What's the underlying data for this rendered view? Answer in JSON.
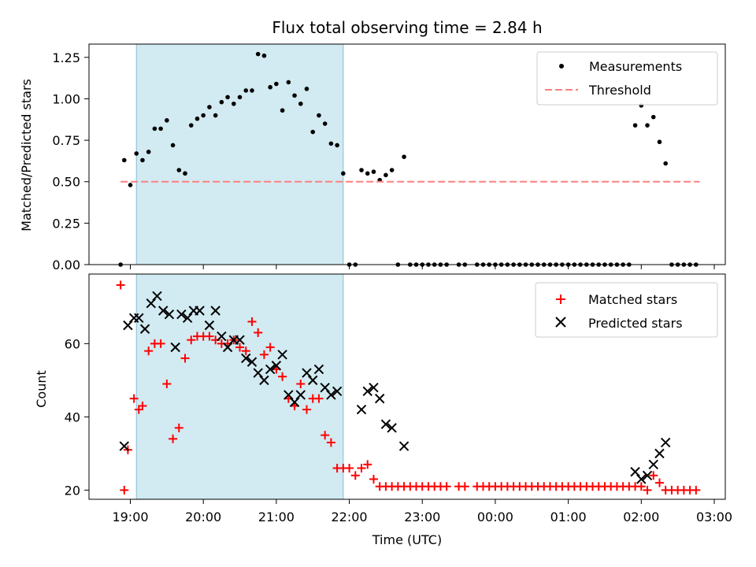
{
  "chart_data": [
    {
      "type": "scatter",
      "title": "Flux total observing time = 2.84 h",
      "xlabel": "",
      "ylabel": "Matched/Predicted stars",
      "ylim": [
        0,
        1.33
      ],
      "yticks": [
        "0.00",
        "0.25",
        "0.50",
        "0.75",
        "1.00",
        "1.25"
      ],
      "shaded_interval": [
        "19:05",
        "21:55"
      ],
      "legend": {
        "placement": "top-right",
        "entries": [
          "Measurements",
          "Threshold"
        ]
      },
      "threshold": {
        "name": "Threshold",
        "value": 0.5,
        "x_range": [
          "18:52",
          "02:48"
        ],
        "color": "#ff7f7f"
      },
      "series": [
        {
          "name": "Measurements",
          "color": "#000000",
          "points": [
            [
              "18:52",
              0.0
            ],
            [
              "18:55",
              0.63
            ],
            [
              "19:00",
              0.48
            ],
            [
              "19:05",
              0.67
            ],
            [
              "19:10",
              0.63
            ],
            [
              "19:15",
              0.68
            ],
            [
              "19:20",
              0.82
            ],
            [
              "19:25",
              0.82
            ],
            [
              "19:30",
              0.87
            ],
            [
              "19:35",
              0.72
            ],
            [
              "19:40",
              0.57
            ],
            [
              "19:45",
              0.55
            ],
            [
              "19:50",
              0.84
            ],
            [
              "19:55",
              0.88
            ],
            [
              "20:00",
              0.9
            ],
            [
              "20:05",
              0.95
            ],
            [
              "20:10",
              0.9
            ],
            [
              "20:15",
              0.98
            ],
            [
              "20:20",
              1.01
            ],
            [
              "20:25",
              0.97
            ],
            [
              "20:30",
              1.01
            ],
            [
              "20:35",
              1.05
            ],
            [
              "20:40",
              1.05
            ],
            [
              "20:45",
              1.27
            ],
            [
              "20:50",
              1.26
            ],
            [
              "20:55",
              1.07
            ],
            [
              "21:00",
              1.09
            ],
            [
              "21:05",
              0.93
            ],
            [
              "21:10",
              1.1
            ],
            [
              "21:15",
              1.02
            ],
            [
              "21:20",
              0.97
            ],
            [
              "21:25",
              1.06
            ],
            [
              "21:30",
              0.8
            ],
            [
              "21:35",
              0.9
            ],
            [
              "21:40",
              0.85
            ],
            [
              "21:45",
              0.73
            ],
            [
              "21:50",
              0.72
            ],
            [
              "21:55",
              0.55
            ],
            [
              "22:00",
              0.0
            ],
            [
              "22:05",
              0.0
            ],
            [
              "22:10",
              0.57
            ],
            [
              "22:15",
              0.55
            ],
            [
              "22:20",
              0.56
            ],
            [
              "22:25",
              0.51
            ],
            [
              "22:30",
              0.54
            ],
            [
              "22:35",
              0.57
            ],
            [
              "22:40",
              0.0
            ],
            [
              "22:45",
              0.65
            ],
            [
              "22:50",
              0.0
            ],
            [
              "22:55",
              0.0
            ],
            [
              "23:00",
              0.0
            ],
            [
              "23:05",
              0.0
            ],
            [
              "23:10",
              0.0
            ],
            [
              "23:15",
              0.0
            ],
            [
              "23:20",
              0.0
            ],
            [
              "23:30",
              0.0
            ],
            [
              "23:35",
              0.0
            ],
            [
              "23:45",
              0.0
            ],
            [
              "23:50",
              0.0
            ],
            [
              "23:55",
              0.0
            ],
            [
              "00:00",
              0.0
            ],
            [
              "00:05",
              0.0
            ],
            [
              "00:10",
              0.0
            ],
            [
              "00:15",
              0.0
            ],
            [
              "00:20",
              0.0
            ],
            [
              "00:25",
              0.0
            ],
            [
              "00:30",
              0.0
            ],
            [
              "00:35",
              0.0
            ],
            [
              "00:40",
              0.0
            ],
            [
              "00:45",
              0.0
            ],
            [
              "00:50",
              0.0
            ],
            [
              "00:55",
              0.0
            ],
            [
              "01:00",
              0.0
            ],
            [
              "01:05",
              0.0
            ],
            [
              "01:10",
              0.0
            ],
            [
              "01:15",
              0.0
            ],
            [
              "01:20",
              0.0
            ],
            [
              "01:25",
              0.0
            ],
            [
              "01:30",
              0.0
            ],
            [
              "01:35",
              0.0
            ],
            [
              "01:40",
              0.0
            ],
            [
              "01:45",
              0.0
            ],
            [
              "01:50",
              0.0
            ],
            [
              "01:55",
              0.84
            ],
            [
              "02:00",
              0.96
            ],
            [
              "02:05",
              0.84
            ],
            [
              "02:10",
              0.89
            ],
            [
              "02:15",
              0.74
            ],
            [
              "02:20",
              0.61
            ],
            [
              "02:25",
              0.0
            ],
            [
              "02:30",
              0.0
            ],
            [
              "02:35",
              0.0
            ],
            [
              "02:40",
              0.0
            ],
            [
              "02:45",
              0.0
            ]
          ]
        }
      ]
    },
    {
      "type": "scatter",
      "title": "",
      "xlabel": "Time (UTC)",
      "ylabel": "Count",
      "ylim": [
        17.5,
        79
      ],
      "yticks": [
        "20",
        "40",
        "60"
      ],
      "xticks": [
        "19:00",
        "20:00",
        "21:00",
        "22:00",
        "23:00",
        "00:00",
        "01:00",
        "02:00",
        "03:00"
      ],
      "shaded_interval": [
        "19:05",
        "21:55"
      ],
      "legend": {
        "placement": "top-right",
        "entries": [
          "Matched stars",
          "Predicted stars"
        ]
      },
      "series": [
        {
          "name": "Matched stars",
          "marker": "+",
          "color": "#ff0000",
          "points": [
            [
              "18:52",
              76
            ],
            [
              "18:55",
              20
            ],
            [
              "18:58",
              31
            ],
            [
              "19:03",
              45
            ],
            [
              "19:07",
              42
            ],
            [
              "19:10",
              43
            ],
            [
              "19:15",
              58
            ],
            [
              "19:20",
              60
            ],
            [
              "19:25",
              60
            ],
            [
              "19:30",
              49
            ],
            [
              "19:35",
              34
            ],
            [
              "19:40",
              37
            ],
            [
              "19:45",
              56
            ],
            [
              "19:50",
              61
            ],
            [
              "19:55",
              62
            ],
            [
              "20:00",
              62
            ],
            [
              "20:05",
              62
            ],
            [
              "20:10",
              61
            ],
            [
              "20:15",
              60
            ],
            [
              "20:20",
              60
            ],
            [
              "20:25",
              61
            ],
            [
              "20:30",
              59
            ],
            [
              "20:35",
              58
            ],
            [
              "20:40",
              66
            ],
            [
              "20:45",
              63
            ],
            [
              "20:50",
              57
            ],
            [
              "20:55",
              59
            ],
            [
              "21:00",
              53
            ],
            [
              "21:05",
              51
            ],
            [
              "21:10",
              45
            ],
            [
              "21:15",
              43
            ],
            [
              "21:20",
              49
            ],
            [
              "21:25",
              42
            ],
            [
              "21:30",
              45
            ],
            [
              "21:35",
              45
            ],
            [
              "21:40",
              35
            ],
            [
              "21:45",
              33
            ],
            [
              "21:50",
              26
            ],
            [
              "21:55",
              26
            ],
            [
              "22:00",
              26
            ],
            [
              "22:05",
              24
            ],
            [
              "22:10",
              26
            ],
            [
              "22:15",
              27
            ],
            [
              "22:20",
              23
            ],
            [
              "22:25",
              21
            ],
            [
              "22:30",
              21
            ],
            [
              "22:35",
              21
            ],
            [
              "22:40",
              21
            ],
            [
              "22:45",
              21
            ],
            [
              "22:50",
              21
            ],
            [
              "22:55",
              21
            ],
            [
              "23:00",
              21
            ],
            [
              "23:05",
              21
            ],
            [
              "23:10",
              21
            ],
            [
              "23:15",
              21
            ],
            [
              "23:20",
              21
            ],
            [
              "23:30",
              21
            ],
            [
              "23:35",
              21
            ],
            [
              "23:45",
              21
            ],
            [
              "23:50",
              21
            ],
            [
              "23:55",
              21
            ],
            [
              "00:00",
              21
            ],
            [
              "00:05",
              21
            ],
            [
              "00:10",
              21
            ],
            [
              "00:15",
              21
            ],
            [
              "00:20",
              21
            ],
            [
              "00:25",
              21
            ],
            [
              "00:30",
              21
            ],
            [
              "00:35",
              21
            ],
            [
              "00:40",
              21
            ],
            [
              "00:45",
              21
            ],
            [
              "00:50",
              21
            ],
            [
              "00:55",
              21
            ],
            [
              "01:00",
              21
            ],
            [
              "01:05",
              21
            ],
            [
              "01:10",
              21
            ],
            [
              "01:15",
              21
            ],
            [
              "01:20",
              21
            ],
            [
              "01:25",
              21
            ],
            [
              "01:30",
              21
            ],
            [
              "01:35",
              21
            ],
            [
              "01:40",
              21
            ],
            [
              "01:45",
              21
            ],
            [
              "01:50",
              21
            ],
            [
              "01:55",
              21
            ],
            [
              "02:00",
              21
            ],
            [
              "02:05",
              20
            ],
            [
              "02:10",
              24
            ],
            [
              "02:15",
              22
            ],
            [
              "02:20",
              20
            ],
            [
              "02:25",
              20
            ],
            [
              "02:30",
              20
            ],
            [
              "02:35",
              20
            ],
            [
              "02:40",
              20
            ],
            [
              "02:45",
              20
            ]
          ]
        },
        {
          "name": "Predicted stars",
          "marker": "x",
          "color": "#000000",
          "points": [
            [
              "18:55",
              32
            ],
            [
              "18:58",
              65
            ],
            [
              "19:03",
              67
            ],
            [
              "19:07",
              67
            ],
            [
              "19:12",
              64
            ],
            [
              "19:17",
              71
            ],
            [
              "19:22",
              73
            ],
            [
              "19:27",
              69
            ],
            [
              "19:32",
              68
            ],
            [
              "19:37",
              59
            ],
            [
              "19:42",
              68
            ],
            [
              "19:47",
              67
            ],
            [
              "19:52",
              69
            ],
            [
              "19:57",
              69
            ],
            [
              "20:05",
              65
            ],
            [
              "20:10",
              69
            ],
            [
              "20:15",
              62
            ],
            [
              "20:20",
              59
            ],
            [
              "20:25",
              61
            ],
            [
              "20:30",
              61
            ],
            [
              "20:35",
              56
            ],
            [
              "20:40",
              55
            ],
            [
              "20:45",
              52
            ],
            [
              "20:50",
              50
            ],
            [
              "20:55",
              53
            ],
            [
              "21:00",
              54
            ],
            [
              "21:05",
              57
            ],
            [
              "21:10",
              46
            ],
            [
              "21:15",
              44
            ],
            [
              "21:20",
              46
            ],
            [
              "21:25",
              52
            ],
            [
              "21:30",
              50
            ],
            [
              "21:35",
              53
            ],
            [
              "21:40",
              48
            ],
            [
              "21:45",
              46
            ],
            [
              "21:50",
              47
            ],
            [
              "22:10",
              42
            ],
            [
              "22:15",
              47
            ],
            [
              "22:20",
              48
            ],
            [
              "22:25",
              45
            ],
            [
              "22:30",
              38
            ],
            [
              "22:35",
              37
            ],
            [
              "22:45",
              32
            ],
            [
              "01:55",
              25
            ],
            [
              "02:00",
              23
            ],
            [
              "02:05",
              24
            ],
            [
              "02:10",
              27
            ],
            [
              "02:15",
              30
            ],
            [
              "02:20",
              33
            ]
          ]
        }
      ]
    }
  ]
}
